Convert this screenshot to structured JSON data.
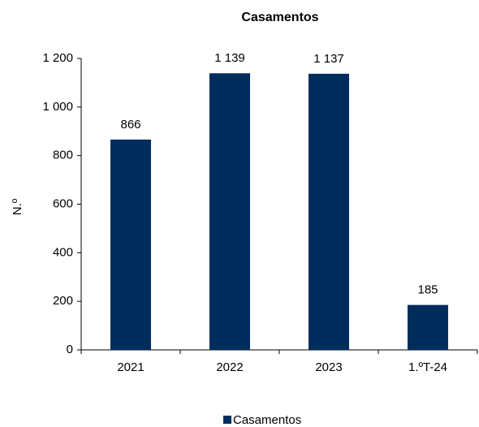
{
  "chart_data": {
    "type": "bar",
    "title": "Casamentos",
    "y_label": "N.º",
    "categories": [
      "2021",
      "2022",
      "2023",
      "1.ºT-24"
    ],
    "series": [
      {
        "name": "Casamentos",
        "color": "#002d5c",
        "values": [
          866,
          1139,
          1137,
          185
        ],
        "value_labels": [
          "866",
          "1 139",
          "1 137",
          "185"
        ]
      }
    ],
    "ylim": [
      0,
      1200
    ],
    "yticks": [
      0,
      200,
      400,
      600,
      800,
      {
        "value": 1000,
        "label": "1 000"
      },
      {
        "value": 1200,
        "label": "1 200"
      }
    ],
    "grid": false,
    "legend": "bottom"
  }
}
